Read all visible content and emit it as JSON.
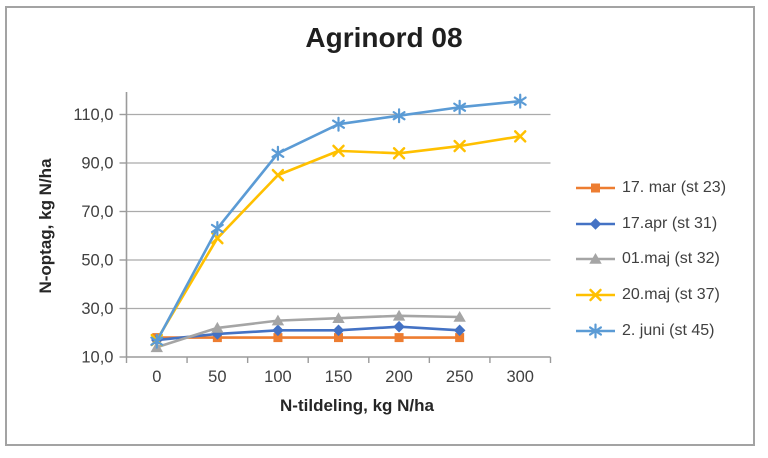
{
  "chart_data": {
    "type": "line",
    "title": "Agrinord 08",
    "xlabel": "N-tildeling, kg N/ha",
    "ylabel": "N-optag, kg N/ha",
    "categories": [
      0,
      50,
      100,
      150,
      200,
      250,
      300
    ],
    "x_tick_labels": [
      "0",
      "50",
      "100",
      "150",
      "200",
      "250",
      "300"
    ],
    "y_ticks": [
      10,
      30,
      50,
      70,
      90,
      110
    ],
    "y_tick_labels": [
      "10,0",
      "30,0",
      "50,0",
      "70,0",
      "90,0",
      "110,0"
    ],
    "ylim": [
      10,
      122
    ],
    "grid": "horizontal",
    "legend_position": "right",
    "series": [
      {
        "name": "17. mar (st 23)",
        "color": "#ED7D31",
        "marker": "square",
        "values": [
          18,
          18,
          18,
          18,
          18,
          18,
          null
        ]
      },
      {
        "name": "17.apr (st 31)",
        "color": "#4472C4",
        "marker": "diamond",
        "values": [
          17,
          19.5,
          21,
          21,
          22.5,
          21,
          null
        ]
      },
      {
        "name": "01.maj (st 32)",
        "color": "#A5A5A5",
        "marker": "triangle",
        "values": [
          14,
          22,
          25,
          26,
          27,
          26.5,
          null
        ]
      },
      {
        "name": "20.maj (st 37)",
        "color": "#FFC000",
        "marker": "x",
        "values": [
          17,
          59,
          85,
          95,
          94,
          97,
          101
        ]
      },
      {
        "name": "2. juni (st 45)",
        "color": "#5B9BD5",
        "marker": "asterisk",
        "values": [
          16.5,
          63,
          94,
          106,
          109.5,
          113,
          115.5
        ]
      }
    ],
    "colors": {
      "axis": "#9B9B9B",
      "gridline": "#ABABAB",
      "tick_text": "#404040",
      "title_text": "#1F1F1F"
    }
  }
}
